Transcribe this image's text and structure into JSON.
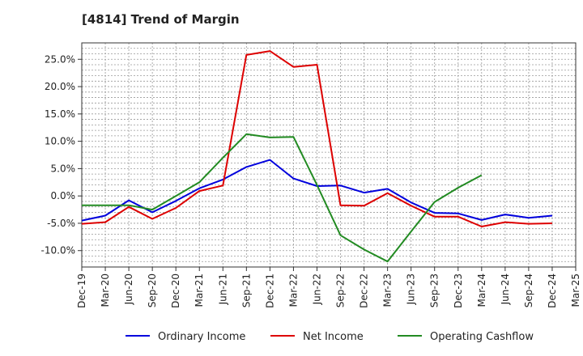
{
  "chart_data": {
    "type": "line",
    "title": "[4814]  Trend of Margin",
    "xlabel": "",
    "ylabel": "",
    "categories": [
      "Dec-19",
      "Mar-20",
      "Jun-20",
      "Sep-20",
      "Dec-20",
      "Mar-21",
      "Jun-21",
      "Sep-21",
      "Dec-21",
      "Mar-22",
      "Jun-22",
      "Sep-22",
      "Dec-22",
      "Mar-23",
      "Jun-23",
      "Sep-23",
      "Dec-23",
      "Mar-24",
      "Jun-24",
      "Sep-24",
      "Dec-24",
      "Mar-25"
    ],
    "ylim": [
      -13,
      28
    ],
    "yticks": [
      -10,
      -5,
      0,
      5,
      10,
      15,
      20,
      25
    ],
    "ytick_labels": [
      "-10.0%",
      "-5.0%",
      "0.0%",
      "5.0%",
      "10.0%",
      "15.0%",
      "20.0%",
      "25.0%"
    ],
    "grid": true,
    "legend_position": "bottom",
    "series": [
      {
        "name": "Ordinary Income",
        "color": "#0000dd",
        "values": [
          -4.5,
          -3.6,
          -0.8,
          -3.0,
          -0.9,
          1.4,
          3.0,
          5.3,
          6.6,
          3.2,
          1.8,
          1.9,
          0.6,
          1.3,
          -1.2,
          -3.1,
          -3.2,
          -4.4,
          -3.4,
          -4.0,
          -3.6,
          null
        ]
      },
      {
        "name": "Net Income",
        "color": "#dd0000",
        "values": [
          -5.1,
          -4.8,
          -2.0,
          -4.2,
          -2.2,
          0.9,
          1.9,
          25.8,
          26.5,
          23.6,
          24.0,
          -1.7,
          -1.8,
          0.5,
          -1.8,
          -3.8,
          -3.8,
          -5.6,
          -4.8,
          -5.1,
          -5.0,
          null
        ]
      },
      {
        "name": "Operating Cashflow",
        "color": "#228b22",
        "values": [
          -1.7,
          -1.7,
          -1.7,
          -2.5,
          0.0,
          2.5,
          7.0,
          11.3,
          10.7,
          10.8,
          2.0,
          -7.2,
          -9.8,
          -12.0,
          -6.5,
          -1.1,
          1.5,
          3.8,
          null,
          null,
          null,
          null
        ]
      }
    ]
  }
}
